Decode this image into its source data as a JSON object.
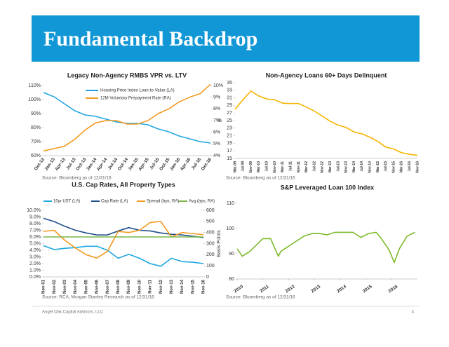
{
  "header": {
    "title": "Fundamental Backdrop"
  },
  "footer": {
    "company": "Angel Oak Capital Advisors, LLC",
    "page": "4"
  },
  "chart_data": [
    {
      "type": "line",
      "title": "Legacy Non-Agency RMBS VPR vs. LTV",
      "legend": "top-left",
      "categories": [
        "Oct-12",
        "Jan-13",
        "Apr-13",
        "Jul-13",
        "Oct-13",
        "Jan-14",
        "Apr-14",
        "Jul-14",
        "Oct-14",
        "Jan-15",
        "Apr-15",
        "Jul-15",
        "Oct-15",
        "Jan-16",
        "Apr-16",
        "Jul-16",
        "Oct-16"
      ],
      "series": [
        {
          "name": "Housing Price Index Loan-to-Value (LA)",
          "color": "#22a6e0",
          "values": [
            105,
            102,
            97,
            92,
            89,
            88,
            86,
            84,
            83,
            83,
            82,
            79,
            77,
            74,
            72,
            70,
            69
          ]
        },
        {
          "name": "12M Voluntary Prepayment Rate (RA)",
          "color": "#f39a1e",
          "axis": "y2",
          "values": [
            4.4,
            4.6,
            4.8,
            5.4,
            6.2,
            6.8,
            7.0,
            7.0,
            6.7,
            6.7,
            7.0,
            7.6,
            8.0,
            8.6,
            9.0,
            9.3,
            10.1
          ]
        }
      ],
      "ylim": [
        60,
        110
      ],
      "yticks": [
        {
          "value": 60,
          "label": "60%"
        },
        {
          "value": 70,
          "label": "70%"
        },
        {
          "value": 80,
          "label": "80%"
        },
        {
          "value": 90,
          "label": "90%"
        },
        {
          "value": 100,
          "label": "100%"
        },
        {
          "value": 110,
          "label": "110%"
        }
      ],
      "y2lim": [
        4,
        10
      ],
      "y2ticks": [
        {
          "value": 4,
          "label": "4%"
        },
        {
          "value": 5,
          "label": "5%"
        },
        {
          "value": 6,
          "label": "6%"
        },
        {
          "value": 7,
          "label": "7%"
        },
        {
          "value": 8,
          "label": "8%"
        },
        {
          "value": 9,
          "label": "9%"
        },
        {
          "value": 10,
          "label": "10%"
        }
      ],
      "source": "Source: Bloomberg as of 12/31/16"
    },
    {
      "type": "line",
      "title": "Non-Agency Loans 60+ Days Delinquent",
      "y_label": "%",
      "categories": [
        "Mar-09",
        "Jul-09",
        "Nov-09",
        "Mar-10",
        "Jul-10",
        "Nov-10",
        "Mar-11",
        "Jul-11",
        "Nov-11",
        "Mar-12",
        "Jul-12",
        "Nov-12",
        "Mar-13",
        "Jul-13",
        "Nov-13",
        "Mar-14",
        "Jul-14",
        "Nov-14",
        "Mar-15",
        "Jul-15",
        "Nov-15",
        "Mar-16",
        "Jul-16",
        "Nov-16"
      ],
      "series": [
        {
          "name": "Non-Agency Loans 60+ Days Delinquent",
          "color": "#f5b400",
          "values": [
            28.0,
            30.5,
            32.8,
            31.5,
            30.7,
            30.5,
            29.6,
            29.5,
            29.5,
            28.6,
            27.5,
            26.2,
            24.8,
            23.8,
            23.2,
            22.0,
            21.5,
            20.6,
            19.5,
            18.0,
            17.5,
            16.5,
            16.1,
            15.8
          ]
        }
      ],
      "ylim": [
        15,
        35
      ],
      "yticks": [
        15,
        17,
        19,
        21,
        23,
        25,
        27,
        29,
        31,
        33,
        35
      ],
      "source": "Source: Bloomberg as of 12/31/16"
    },
    {
      "type": "line",
      "title": "U.S. Cap Rates, All Property Types",
      "legend": "top",
      "y2_label": "Basis Points",
      "categories": [
        "Nov-01",
        "Nov-02",
        "Nov-03",
        "Nov-04",
        "Nov-05",
        "Nov-06",
        "Nov-07",
        "Nov-08",
        "Nov-09",
        "Nov-10",
        "Nov-11",
        "Nov-12",
        "Nov-13",
        "Nov-14",
        "Nov-15",
        "Nov-16"
      ],
      "series": [
        {
          "name": "10yr UST (LA)",
          "color": "#1ea7e0",
          "values": [
            4.7,
            4.1,
            4.3,
            4.4,
            4.6,
            4.6,
            4.0,
            2.8,
            3.4,
            2.8,
            2.0,
            1.6,
            2.8,
            2.3,
            2.2,
            2.0
          ]
        },
        {
          "name": "Cap Rate (LA)",
          "color": "#1f4e8c",
          "values": [
            8.8,
            8.3,
            7.6,
            7.0,
            6.6,
            6.3,
            6.3,
            6.9,
            7.4,
            7.0,
            6.9,
            6.6,
            6.4,
            6.3,
            6.1,
            5.9
          ]
        },
        {
          "name": "Spread (bps, RA)",
          "color": "#f39a1e",
          "axis": "y2",
          "values": [
            410,
            420,
            330,
            260,
            200,
            170,
            230,
            410,
            400,
            420,
            490,
            500,
            360,
            400,
            390,
            380
          ]
        },
        {
          "name": "Avg (bps, RA)",
          "color": "#7ab648",
          "axis": "y2",
          "values": [
            360,
            360,
            360,
            360,
            360,
            360,
            360,
            360,
            360,
            360,
            360,
            360,
            360,
            360,
            360,
            360
          ]
        }
      ],
      "ylim": [
        0,
        10
      ],
      "yticks": [
        {
          "value": 0,
          "label": "0.0%"
        },
        {
          "value": 1,
          "label": "1.0%"
        },
        {
          "value": 2,
          "label": "2.0%"
        },
        {
          "value": 3,
          "label": "3.0%"
        },
        {
          "value": 4,
          "label": "4.0%"
        },
        {
          "value": 5,
          "label": "5.0%"
        },
        {
          "value": 6,
          "label": "6.0%"
        },
        {
          "value": 7,
          "label": "7.0%"
        },
        {
          "value": 8,
          "label": "8.0%"
        },
        {
          "value": 9,
          "label": "9.0%"
        },
        {
          "value": 10,
          "label": "10.0%"
        }
      ],
      "y2lim": [
        0,
        600
      ],
      "y2ticks": [
        0,
        100,
        200,
        300,
        400,
        500,
        600
      ],
      "source": "Source: RCA, Morgan Stanley Research as of 12/31/16"
    },
    {
      "type": "line",
      "title": "S&P Leveraged Loan 100 Index",
      "x": [
        2010.0,
        2010.2,
        2010.5,
        2010.8,
        2011.0,
        2011.3,
        2011.6,
        2011.7,
        2012.0,
        2012.3,
        2012.6,
        2012.9,
        2013.2,
        2013.5,
        2013.8,
        2014.2,
        2014.5,
        2014.8,
        2015.1,
        2015.4,
        2015.6,
        2015.9,
        2016.1,
        2016.3,
        2016.6,
        2016.9
      ],
      "series": [
        {
          "name": "S&P Leveraged Loan 100 Index",
          "color": "#7dba2c",
          "values": [
            92,
            89,
            91,
            94,
            96,
            96,
            89,
            91,
            93,
            95,
            97,
            98,
            98,
            97.5,
            98.5,
            98.5,
            98.5,
            96.5,
            98,
            98.5,
            96,
            91.5,
            86.5,
            92,
            97,
            98.5
          ]
        }
      ],
      "xlim": [
        2010,
        2017
      ],
      "xticks": [
        2010,
        2011,
        2012,
        2013,
        2014,
        2015,
        2016
      ],
      "ylim": [
        80,
        110
      ],
      "yticks": [
        80,
        90,
        100,
        110
      ],
      "source": "Source: Bloomberg as of 12/31/16"
    }
  ]
}
